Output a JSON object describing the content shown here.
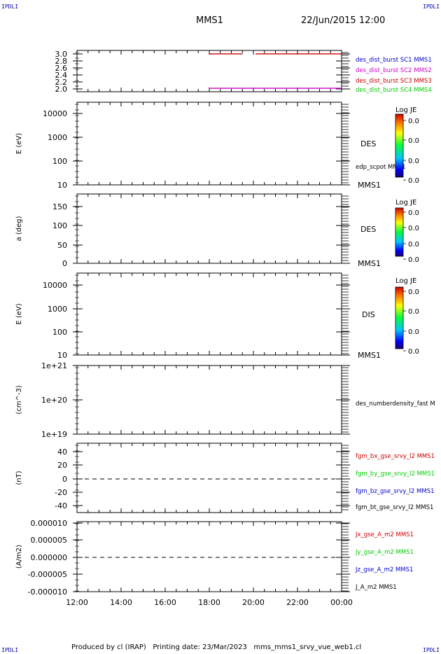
{
  "header": {
    "corner_tl": "IPDLI",
    "corner_tr": "IPDLI",
    "corner_bl": "IPDLI",
    "corner_br": "IPDLI",
    "spacecraft": "MMS1",
    "datetime": "22/Jun/2015 12:00"
  },
  "footer": {
    "credit": "Produced by cl (IRAP)   Printing date: 23/Mar/2023   mms_mms1_srvy_vue_web1.cl"
  },
  "colors": {
    "red": "#cc0000",
    "magenta": "#cc00cc",
    "green": "#00cc00",
    "blue": "#0000cc",
    "black": "#000000",
    "corner": "#0000aa"
  },
  "chart_data": [
    {
      "type": "line",
      "panel": "burst",
      "ylabel": "",
      "ylim": [
        1.9,
        3.1
      ],
      "yticks": [
        "3.0",
        "2.8",
        "2.6",
        "2.4",
        "2.2",
        "2.0"
      ],
      "series": [
        {
          "name": "des_dist_burst SC1 MMS1",
          "color": "#0000cc",
          "segments": []
        },
        {
          "name": "des_dist_burst SC2 MMS2",
          "color": "#cc00cc",
          "segments": [
            [
              18.0,
              24.0,
              2.0
            ]
          ]
        },
        {
          "name": "des_dist_burst SC3 MMS3",
          "color": "#cc0000",
          "segments": [
            [
              18.0,
              19.5,
              3.0
            ],
            [
              20.1,
              24.0,
              3.0
            ]
          ]
        },
        {
          "name": "des_dist_burst SC4 MMS4",
          "color": "#00cc00",
          "segments": []
        }
      ]
    },
    {
      "type": "heatmap",
      "panel": "des_energy",
      "ylabel": "E (eV)",
      "yscale": "log",
      "ylim": [
        10,
        20000
      ],
      "yticks": [
        "10000",
        "1000",
        "100",
        "10"
      ],
      "species": "DES",
      "extra_label": "edp_scpot MMS1",
      "below_label": "MMS1",
      "colorbar": {
        "title": "Log JE",
        "ticks": [
          "0.0",
          "0.0",
          "0.0",
          "0.0"
        ]
      }
    },
    {
      "type": "heatmap",
      "panel": "des_pitch",
      "ylabel": "a (deg)",
      "ylim": [
        0,
        180
      ],
      "yticks": [
        "150",
        "100",
        "50",
        "0"
      ],
      "species": "DES",
      "below_label": "MMS1",
      "colorbar": {
        "title": "Log JE",
        "ticks": [
          "0.0",
          "0.0",
          "0.0",
          "0.0"
        ]
      }
    },
    {
      "type": "heatmap",
      "panel": "dis_energy",
      "ylabel": "E (eV)",
      "yscale": "log",
      "ylim": [
        10,
        20000
      ],
      "yticks": [
        "10000",
        "1000",
        "100",
        "10"
      ],
      "species": "DIS",
      "below_label": "MMS1",
      "colorbar": {
        "title": "Log JE",
        "ticks": [
          "0.0",
          "0.0",
          "0.0",
          "0.0"
        ]
      }
    },
    {
      "type": "line",
      "panel": "density",
      "ylabel": "(cm^-3)",
      "yscale": "log",
      "ylim": [
        1e+19,
        1e+21
      ],
      "yticks": [
        "1e+21",
        "1e+20",
        "1e+19"
      ],
      "series": [
        {
          "name": "des_numberdensity_fast M",
          "color": "#000000",
          "segments": []
        }
      ]
    },
    {
      "type": "line",
      "panel": "bfield",
      "ylabel": "(nT)",
      "ylim": [
        -50,
        50
      ],
      "yticks": [
        "40",
        "20",
        "0",
        "-20",
        "-40"
      ],
      "zero_line": true,
      "series": [
        {
          "name": "fgm_bx_gse_srvy_l2 MMS1",
          "color": "#cc0000",
          "segments": []
        },
        {
          "name": "fgm_by_gse_srvy_l2 MMS1",
          "color": "#00cc00",
          "segments": []
        },
        {
          "name": "fgm_bz_gse_srvy_l2 MMS1",
          "color": "#0000cc",
          "segments": []
        },
        {
          "name": "fgm_bt_gse_srvy_l2 MMS1",
          "color": "#000000",
          "segments": []
        }
      ]
    },
    {
      "type": "line",
      "panel": "current",
      "ylabel": "(A/m2)",
      "ylim": [
        -1e-05,
        1e-05
      ],
      "yticks": [
        "0.000010",
        "0.000005",
        "0.000000",
        "-0.000005",
        "-0.000010"
      ],
      "zero_line": true,
      "series": [
        {
          "name": "Jx_gse_A_m2 MMS1",
          "color": "#cc0000",
          "segments": []
        },
        {
          "name": "Jy_gse_A_m2 MMS1",
          "color": "#00cc00",
          "segments": []
        },
        {
          "name": "Jz_gse_A_m2 MMS1",
          "color": "#0000cc",
          "segments": []
        },
        {
          "name": "J_A_m2 MMS1",
          "color": "#000000",
          "segments": []
        }
      ]
    }
  ],
  "x_axis": {
    "xlim": [
      12,
      24
    ],
    "tick_labels": [
      "12:00",
      "14:00",
      "16:00",
      "18:00",
      "20:00",
      "22:00",
      "00:00"
    ],
    "tick_values": [
      12,
      14,
      16,
      18,
      20,
      22,
      24
    ]
  }
}
